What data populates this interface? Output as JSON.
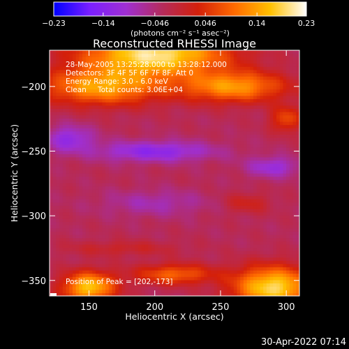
{
  "chart_data": {
    "type": "heatmap",
    "title": "Reconstructed RHESSI Image",
    "xlabel": "Heliocentric X (arcsec)",
    "ylabel": "Heliocentric Y (arcsec)",
    "xlim": [
      120,
      310
    ],
    "ylim": [
      -362,
      -172
    ],
    "xticks": [
      150,
      200,
      250,
      300
    ],
    "yticks": [
      -200,
      -250,
      -300,
      -350
    ],
    "colorbar": {
      "ticks": [
        -0.23,
        -0.14,
        -0.046,
        0.046,
        0.14,
        0.23
      ],
      "tick_labels": [
        "-0.23",
        "-0.14",
        "-0.046",
        "0.046",
        "0.14",
        "0.23"
      ],
      "unit_label": "(photons cm⁻² s⁻¹ asec⁻²)",
      "range": [
        -0.23,
        0.23
      ],
      "colormap_stops": [
        "#0000ff",
        "#7a1fff",
        "#9f2fd2",
        "#b52b5c",
        "#d4200a",
        "#ff6a00",
        "#ffc000",
        "#ffffff"
      ]
    },
    "annotations": [
      "28-May-2005 13:25:28.000 to 13:28:12.000",
      "Detectors: 3F 4F 5F 6F 7F 8F, Att 0",
      "Energy Range: 3.0 - 6.0 keV",
      "Clean",
      "Total counts: 3.06E+04",
      "Position of Peak = [202,-173]"
    ],
    "peak": {
      "x": 202,
      "y": -173,
      "value": 0.23
    },
    "image_features": [
      {
        "kind": "bright",
        "x": 200,
        "y": -175,
        "sx": 55,
        "sy": 16,
        "value": 0.23
      },
      {
        "kind": "bright",
        "x": 160,
        "y": -200,
        "sx": 45,
        "sy": 14,
        "value": 0.17
      },
      {
        "kind": "bright",
        "x": 260,
        "y": -200,
        "sx": 40,
        "sy": 12,
        "value": 0.16
      },
      {
        "kind": "bright",
        "x": 300,
        "y": -225,
        "sx": 12,
        "sy": 10,
        "value": 0.1
      },
      {
        "kind": "bright",
        "x": 150,
        "y": -355,
        "sx": 20,
        "sy": 12,
        "value": 0.2
      },
      {
        "kind": "bright",
        "x": 290,
        "y": -355,
        "sx": 30,
        "sy": 16,
        "value": 0.22
      },
      {
        "kind": "bright",
        "x": 215,
        "y": -345,
        "sx": 30,
        "sy": 8,
        "value": 0.12
      },
      {
        "kind": "dark",
        "x": 200,
        "y": -250,
        "sx": 45,
        "sy": 8,
        "value": -0.1
      },
      {
        "kind": "dark",
        "x": 135,
        "y": -240,
        "sx": 18,
        "sy": 10,
        "value": -0.09
      },
      {
        "kind": "dark",
        "x": 290,
        "y": -262,
        "sx": 20,
        "sy": 8,
        "value": -0.08
      },
      {
        "kind": "dark",
        "x": 200,
        "y": -290,
        "sx": 40,
        "sy": 10,
        "value": -0.05
      },
      {
        "kind": "mid",
        "x": 270,
        "y": -290,
        "sx": 18,
        "sy": 8,
        "value": 0.05
      },
      {
        "kind": "mid",
        "x": 175,
        "y": -325,
        "sx": 45,
        "sy": 6,
        "value": 0.04
      }
    ]
  },
  "footer": {
    "timestamp": "30-Apr-2022 07:14"
  }
}
